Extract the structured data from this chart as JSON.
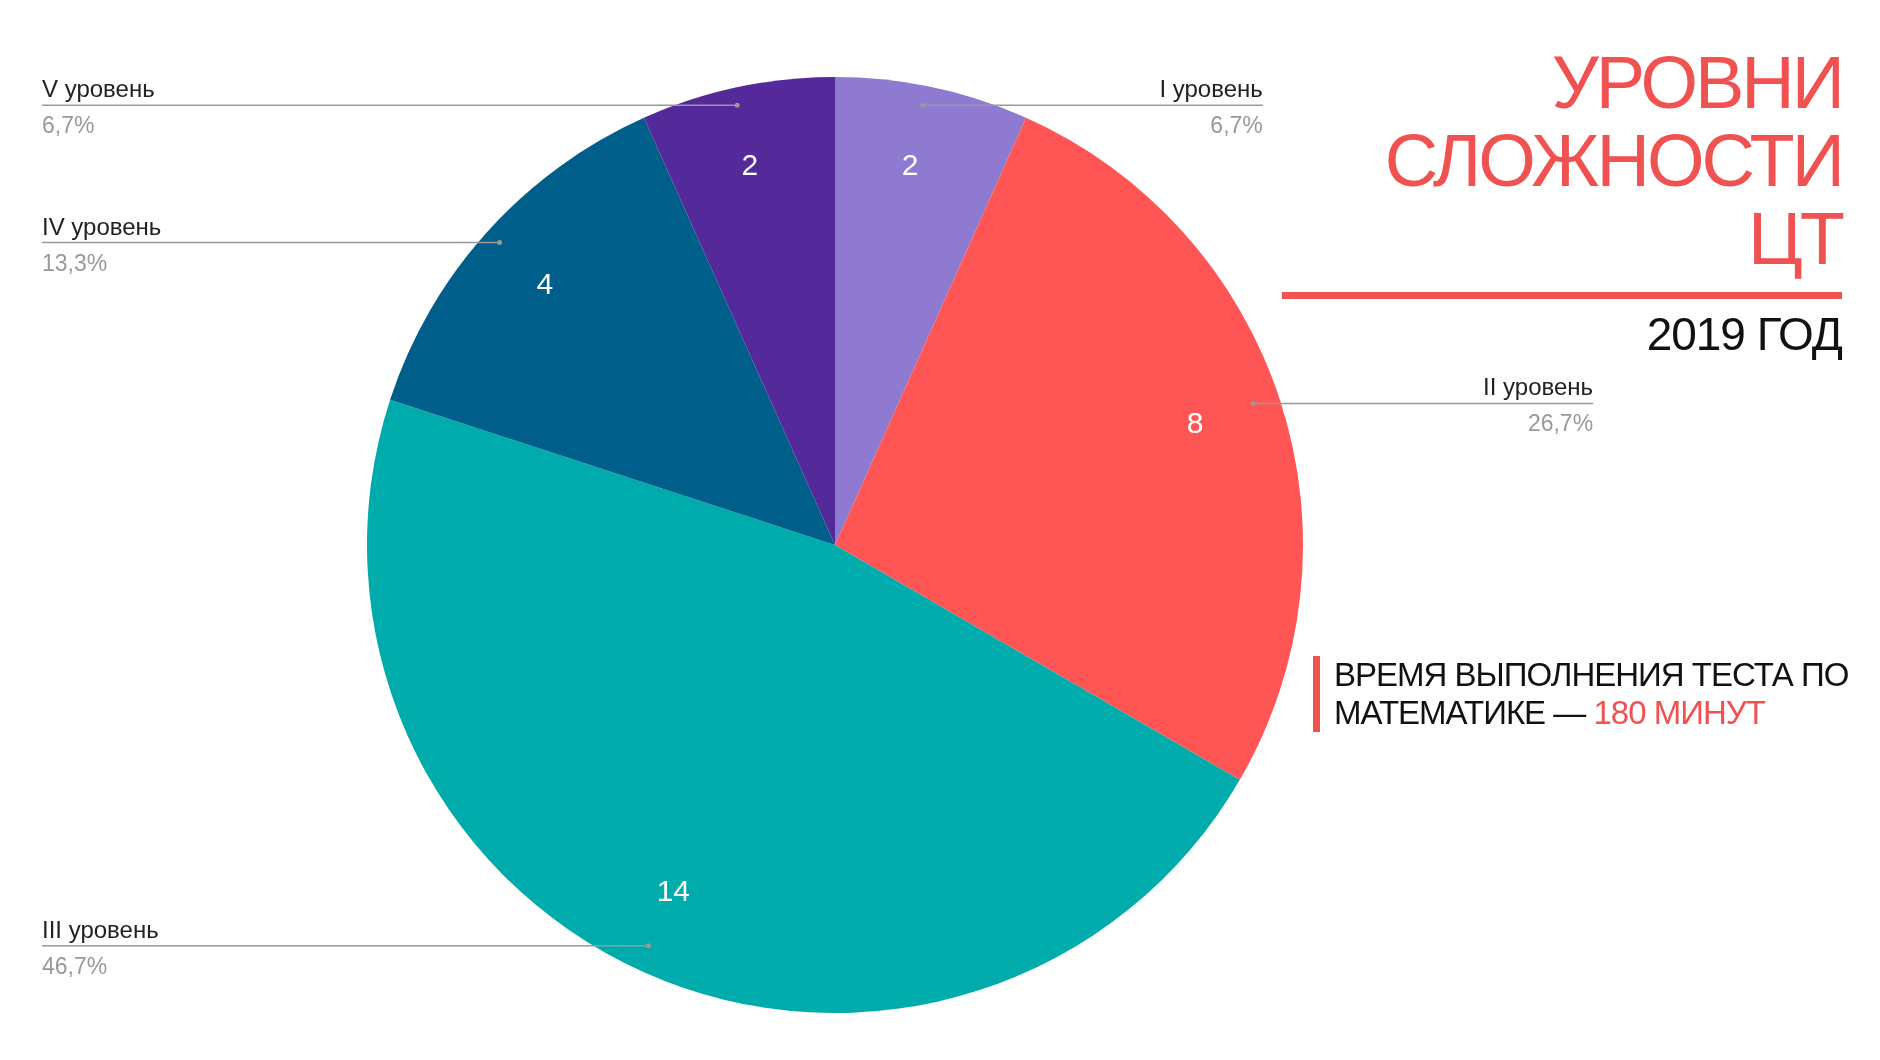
{
  "chart_data": {
    "type": "pie",
    "title": "УРОВНИ СЛОЖНОСТИ ЦТ",
    "subtitle": "2019 ГОД",
    "annotations": [
      "ВРЕМЯ ВЫПОЛНЕНИЯ ТЕСТА ПО МАТЕМАТИКЕ —",
      "180 МИНУТ",
      {
        "text": "2",
        "x": "I уровень"
      },
      {
        "text": "8",
        "x": "II уровень"
      },
      {
        "text": "14",
        "x": "III уровень"
      },
      {
        "text": "4",
        "x": "IV уровень"
      },
      {
        "text": "2",
        "x": "V уровень"
      }
    ],
    "categories": [
      "I уровень",
      "II уровень",
      "III уровень",
      "IV уровень",
      "V уровень"
    ],
    "values": [
      6.7,
      26.7,
      46.7,
      13.3,
      6.7
    ],
    "value_labels": [
      "6,7%",
      "26,7%",
      "46,7%",
      "13,3%",
      "6,7%"
    ],
    "colors": [
      "#8e7ad0",
      "#ff5555",
      "#00abab",
      "#005e8a",
      "#54299a"
    ]
  }
}
